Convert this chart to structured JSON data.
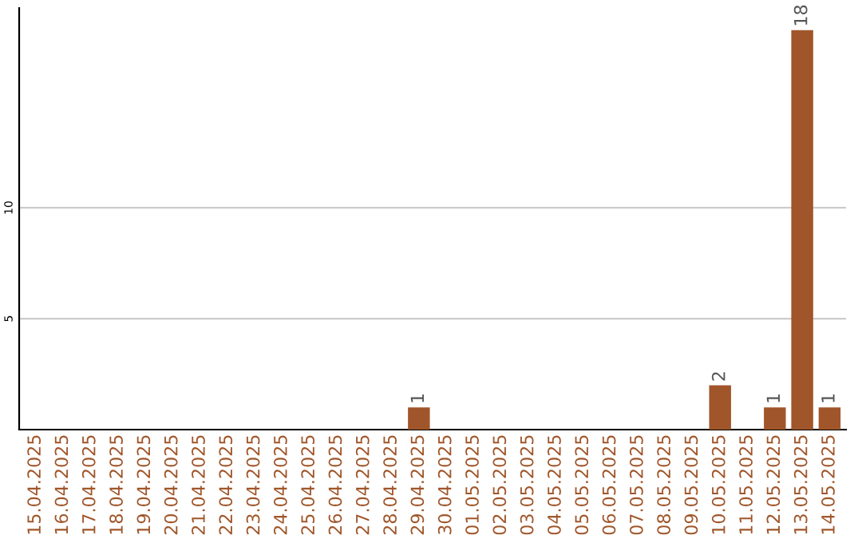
{
  "chart_data": {
    "type": "bar",
    "categories": [
      "15.04.2025",
      "16.04.2025",
      "17.04.2025",
      "18.04.2025",
      "19.04.2025",
      "20.04.2025",
      "21.04.2025",
      "22.04.2025",
      "23.04.2025",
      "24.04.2025",
      "25.04.2025",
      "26.04.2025",
      "27.04.2025",
      "28.04.2025",
      "29.04.2025",
      "30.04.2025",
      "01.05.2025",
      "02.05.2025",
      "03.05.2025",
      "04.05.2025",
      "05.05.2025",
      "06.05.2025",
      "07.05.2025",
      "08.05.2025",
      "09.05.2025",
      "10.05.2025",
      "11.05.2025",
      "12.05.2025",
      "13.05.2025",
      "14.05.2025"
    ],
    "values": [
      0,
      0,
      0,
      0,
      0,
      0,
      0,
      0,
      0,
      0,
      0,
      0,
      0,
      0,
      1,
      0,
      0,
      0,
      0,
      0,
      0,
      0,
      0,
      0,
      0,
      2,
      0,
      1,
      18,
      1
    ],
    "value_labels": [
      null,
      null,
      null,
      null,
      null,
      null,
      null,
      null,
      null,
      null,
      null,
      null,
      null,
      null,
      "1",
      null,
      null,
      null,
      null,
      null,
      null,
      null,
      null,
      null,
      null,
      "2",
      null,
      "1",
      "18",
      "1"
    ],
    "color": "#a0562a",
    "ylim": [
      0,
      19
    ],
    "yticks": [
      5,
      10
    ],
    "grid": "y",
    "legend": false
  }
}
